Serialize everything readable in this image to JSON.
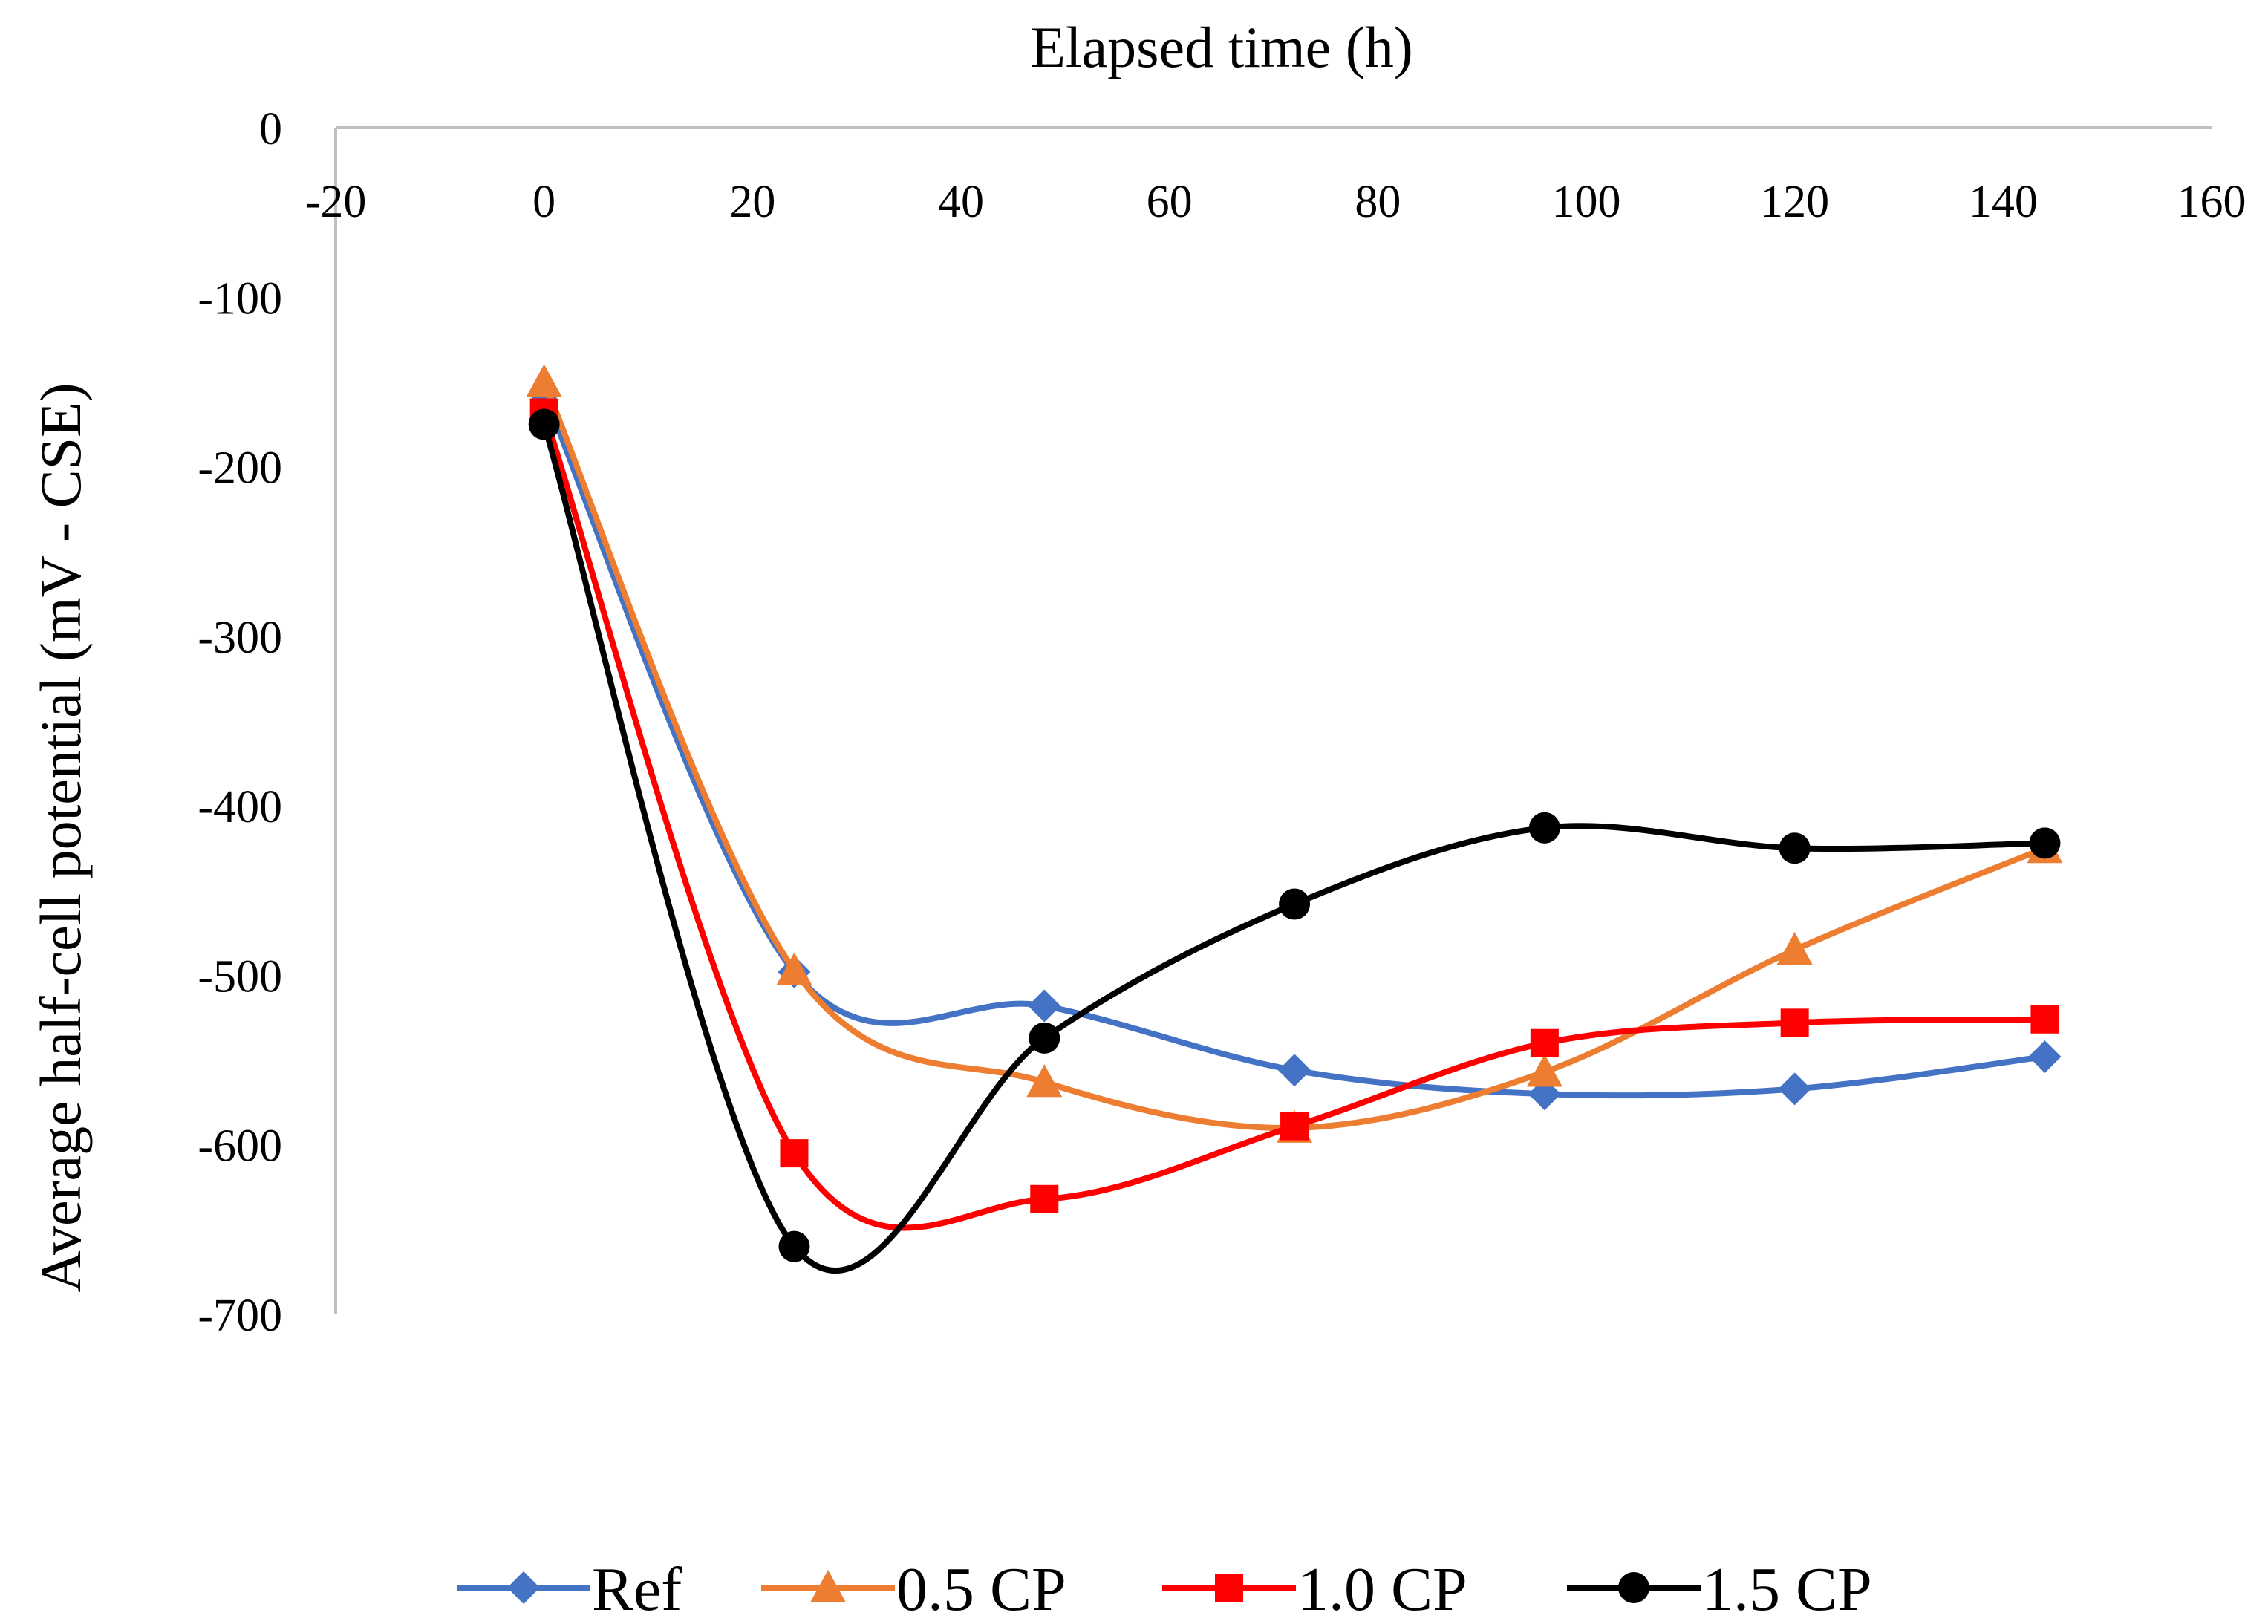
{
  "chart_data": {
    "type": "line",
    "xlabel": "Elapsed time (h)",
    "ylabel": "Average half-cell potential (mV - CSE)",
    "xlim": [
      -20,
      160
    ],
    "ylim": [
      -700,
      0
    ],
    "x_ticks": [
      -20,
      0,
      20,
      40,
      60,
      80,
      100,
      120,
      140,
      160
    ],
    "y_ticks": [
      0,
      -100,
      -200,
      -300,
      -400,
      -500,
      -600,
      -700
    ],
    "x_axis_position": "top",
    "grid": false,
    "legend_position": "bottom",
    "smooth": true,
    "x": [
      0,
      24,
      48,
      72,
      96,
      120,
      144
    ],
    "series": [
      {
        "name": "Ref",
        "color": "#4472C4",
        "marker": "diamond",
        "values": [
          -157,
          -498,
          -518,
          -556,
          -570,
          -567,
          -548
        ]
      },
      {
        "name": "0.5 CP",
        "color": "#ED7D31",
        "marker": "triangle",
        "values": [
          -150,
          -497,
          -563,
          -590,
          -557,
          -485,
          -425
        ]
      },
      {
        "name": "1.0 CP",
        "color": "#FF0000",
        "marker": "square",
        "values": [
          -168,
          -605,
          -632,
          -589,
          -540,
          -528,
          -526
        ]
      },
      {
        "name": "1.5 CP",
        "color": "#000000",
        "marker": "circle",
        "values": [
          -175,
          -660,
          -537,
          -458,
          -413,
          -425,
          -422
        ]
      }
    ]
  }
}
